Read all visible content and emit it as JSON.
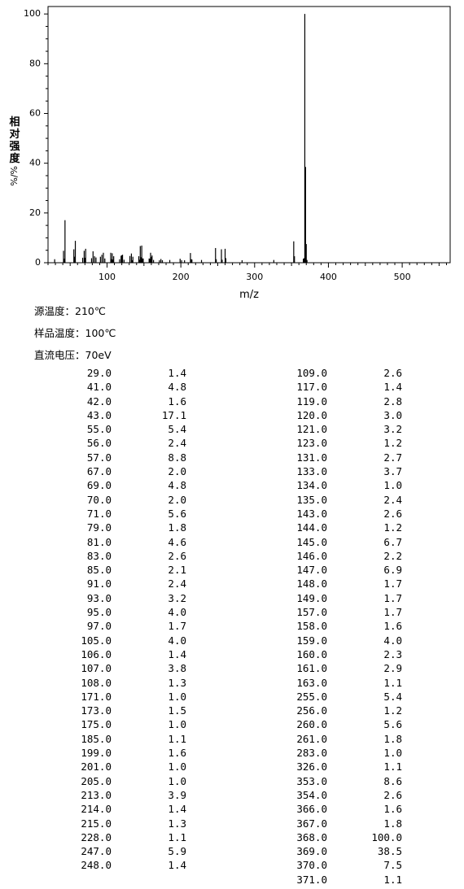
{
  "chart_data": {
    "type": "bar",
    "xlabel": "m/z",
    "ylabel_chars": [
      "相",
      "对",
      "强",
      "度"
    ],
    "ylabel_unit": "%/%",
    "xlim": [
      20,
      565
    ],
    "ylim": [
      0,
      103
    ],
    "x_ticks": [
      100,
      200,
      300,
      400,
      500
    ],
    "y_ticks": [
      0,
      20,
      40,
      60,
      80,
      100
    ],
    "peaks": [
      [
        29.0,
        1.4
      ],
      [
        41.0,
        4.8
      ],
      [
        42.0,
        1.6
      ],
      [
        43.0,
        17.1
      ],
      [
        55.0,
        5.4
      ],
      [
        56.0,
        2.4
      ],
      [
        57.0,
        8.8
      ],
      [
        67.0,
        2.0
      ],
      [
        69.0,
        4.8
      ],
      [
        70.0,
        2.0
      ],
      [
        71.0,
        5.6
      ],
      [
        79.0,
        1.8
      ],
      [
        81.0,
        4.6
      ],
      [
        83.0,
        2.6
      ],
      [
        85.0,
        2.1
      ],
      [
        91.0,
        2.4
      ],
      [
        93.0,
        3.2
      ],
      [
        95.0,
        4.0
      ],
      [
        97.0,
        1.7
      ],
      [
        105.0,
        4.0
      ],
      [
        106.0,
        1.4
      ],
      [
        107.0,
        3.8
      ],
      [
        108.0,
        1.3
      ],
      [
        171.0,
        1.0
      ],
      [
        173.0,
        1.5
      ],
      [
        175.0,
        1.0
      ],
      [
        185.0,
        1.1
      ],
      [
        199.0,
        1.6
      ],
      [
        201.0,
        1.0
      ],
      [
        205.0,
        1.0
      ],
      [
        213.0,
        3.9
      ],
      [
        214.0,
        1.4
      ],
      [
        215.0,
        1.3
      ],
      [
        228.0,
        1.1
      ],
      [
        247.0,
        5.9
      ],
      [
        248.0,
        1.4
      ],
      [
        109.0,
        2.6
      ],
      [
        117.0,
        1.4
      ],
      [
        119.0,
        2.8
      ],
      [
        120.0,
        3.0
      ],
      [
        121.0,
        3.2
      ],
      [
        123.0,
        1.2
      ],
      [
        131.0,
        2.7
      ],
      [
        133.0,
        3.7
      ],
      [
        134.0,
        1.0
      ],
      [
        135.0,
        2.4
      ],
      [
        143.0,
        2.6
      ],
      [
        144.0,
        1.2
      ],
      [
        145.0,
        6.7
      ],
      [
        146.0,
        2.2
      ],
      [
        147.0,
        6.9
      ],
      [
        148.0,
        1.7
      ],
      [
        149.0,
        1.7
      ],
      [
        157.0,
        1.7
      ],
      [
        158.0,
        1.6
      ],
      [
        159.0,
        4.0
      ],
      [
        160.0,
        2.3
      ],
      [
        161.0,
        2.9
      ],
      [
        163.0,
        1.1
      ],
      [
        255.0,
        5.4
      ],
      [
        256.0,
        1.2
      ],
      [
        260.0,
        5.6
      ],
      [
        261.0,
        1.8
      ],
      [
        283.0,
        1.0
      ],
      [
        326.0,
        1.1
      ],
      [
        353.0,
        8.6
      ],
      [
        354.0,
        2.6
      ],
      [
        366.0,
        1.6
      ],
      [
        367.0,
        1.8
      ],
      [
        368.0,
        100.0
      ],
      [
        369.0,
        38.5
      ],
      [
        370.0,
        7.5
      ],
      [
        371.0,
        1.1
      ]
    ]
  },
  "conditions": [
    {
      "label": "源温度：",
      "value": "210℃"
    },
    {
      "label": "样品温度：",
      "value": "100℃"
    },
    {
      "label": "直流电压：",
      "value": "70eV"
    }
  ],
  "peak_table": {
    "left": [
      [
        "29.0",
        "1.4"
      ],
      [
        "41.0",
        "4.8"
      ],
      [
        "42.0",
        "1.6"
      ],
      [
        "43.0",
        "17.1"
      ],
      [
        "55.0",
        "5.4"
      ],
      [
        "56.0",
        "2.4"
      ],
      [
        "57.0",
        "8.8"
      ],
      [
        "67.0",
        "2.0"
      ],
      [
        "69.0",
        "4.8"
      ],
      [
        "70.0",
        "2.0"
      ],
      [
        "71.0",
        "5.6"
      ],
      [
        "79.0",
        "1.8"
      ],
      [
        "81.0",
        "4.6"
      ],
      [
        "83.0",
        "2.6"
      ],
      [
        "85.0",
        "2.1"
      ],
      [
        "91.0",
        "2.4"
      ],
      [
        "93.0",
        "3.2"
      ],
      [
        "95.0",
        "4.0"
      ],
      [
        "97.0",
        "1.7"
      ],
      [
        "105.0",
        "4.0"
      ],
      [
        "106.0",
        "1.4"
      ],
      [
        "107.0",
        "3.8"
      ],
      [
        "108.0",
        "1.3"
      ],
      [
        "171.0",
        "1.0"
      ],
      [
        "173.0",
        "1.5"
      ],
      [
        "175.0",
        "1.0"
      ],
      [
        "185.0",
        "1.1"
      ],
      [
        "199.0",
        "1.6"
      ],
      [
        "201.0",
        "1.0"
      ],
      [
        "205.0",
        "1.0"
      ],
      [
        "213.0",
        "3.9"
      ],
      [
        "214.0",
        "1.4"
      ],
      [
        "215.0",
        "1.3"
      ],
      [
        "228.0",
        "1.1"
      ],
      [
        "247.0",
        "5.9"
      ],
      [
        "248.0",
        "1.4"
      ]
    ],
    "right": [
      [
        "109.0",
        "2.6"
      ],
      [
        "117.0",
        "1.4"
      ],
      [
        "119.0",
        "2.8"
      ],
      [
        "120.0",
        "3.0"
      ],
      [
        "121.0",
        "3.2"
      ],
      [
        "123.0",
        "1.2"
      ],
      [
        "131.0",
        "2.7"
      ],
      [
        "133.0",
        "3.7"
      ],
      [
        "134.0",
        "1.0"
      ],
      [
        "135.0",
        "2.4"
      ],
      [
        "143.0",
        "2.6"
      ],
      [
        "144.0",
        "1.2"
      ],
      [
        "145.0",
        "6.7"
      ],
      [
        "146.0",
        "2.2"
      ],
      [
        "147.0",
        "6.9"
      ],
      [
        "148.0",
        "1.7"
      ],
      [
        "149.0",
        "1.7"
      ],
      [
        "157.0",
        "1.7"
      ],
      [
        "158.0",
        "1.6"
      ],
      [
        "159.0",
        "4.0"
      ],
      [
        "160.0",
        "2.3"
      ],
      [
        "161.0",
        "2.9"
      ],
      [
        "163.0",
        "1.1"
      ],
      [
        "255.0",
        "5.4"
      ],
      [
        "256.0",
        "1.2"
      ],
      [
        "260.0",
        "5.6"
      ],
      [
        "261.0",
        "1.8"
      ],
      [
        "283.0",
        "1.0"
      ],
      [
        "326.0",
        "1.1"
      ],
      [
        "353.0",
        "8.6"
      ],
      [
        "354.0",
        "2.6"
      ],
      [
        "366.0",
        "1.6"
      ],
      [
        "367.0",
        "1.8"
      ],
      [
        "368.0",
        "100.0"
      ],
      [
        "369.0",
        "38.5"
      ],
      [
        "370.0",
        "7.5"
      ],
      [
        "371.0",
        "1.1"
      ]
    ]
  }
}
